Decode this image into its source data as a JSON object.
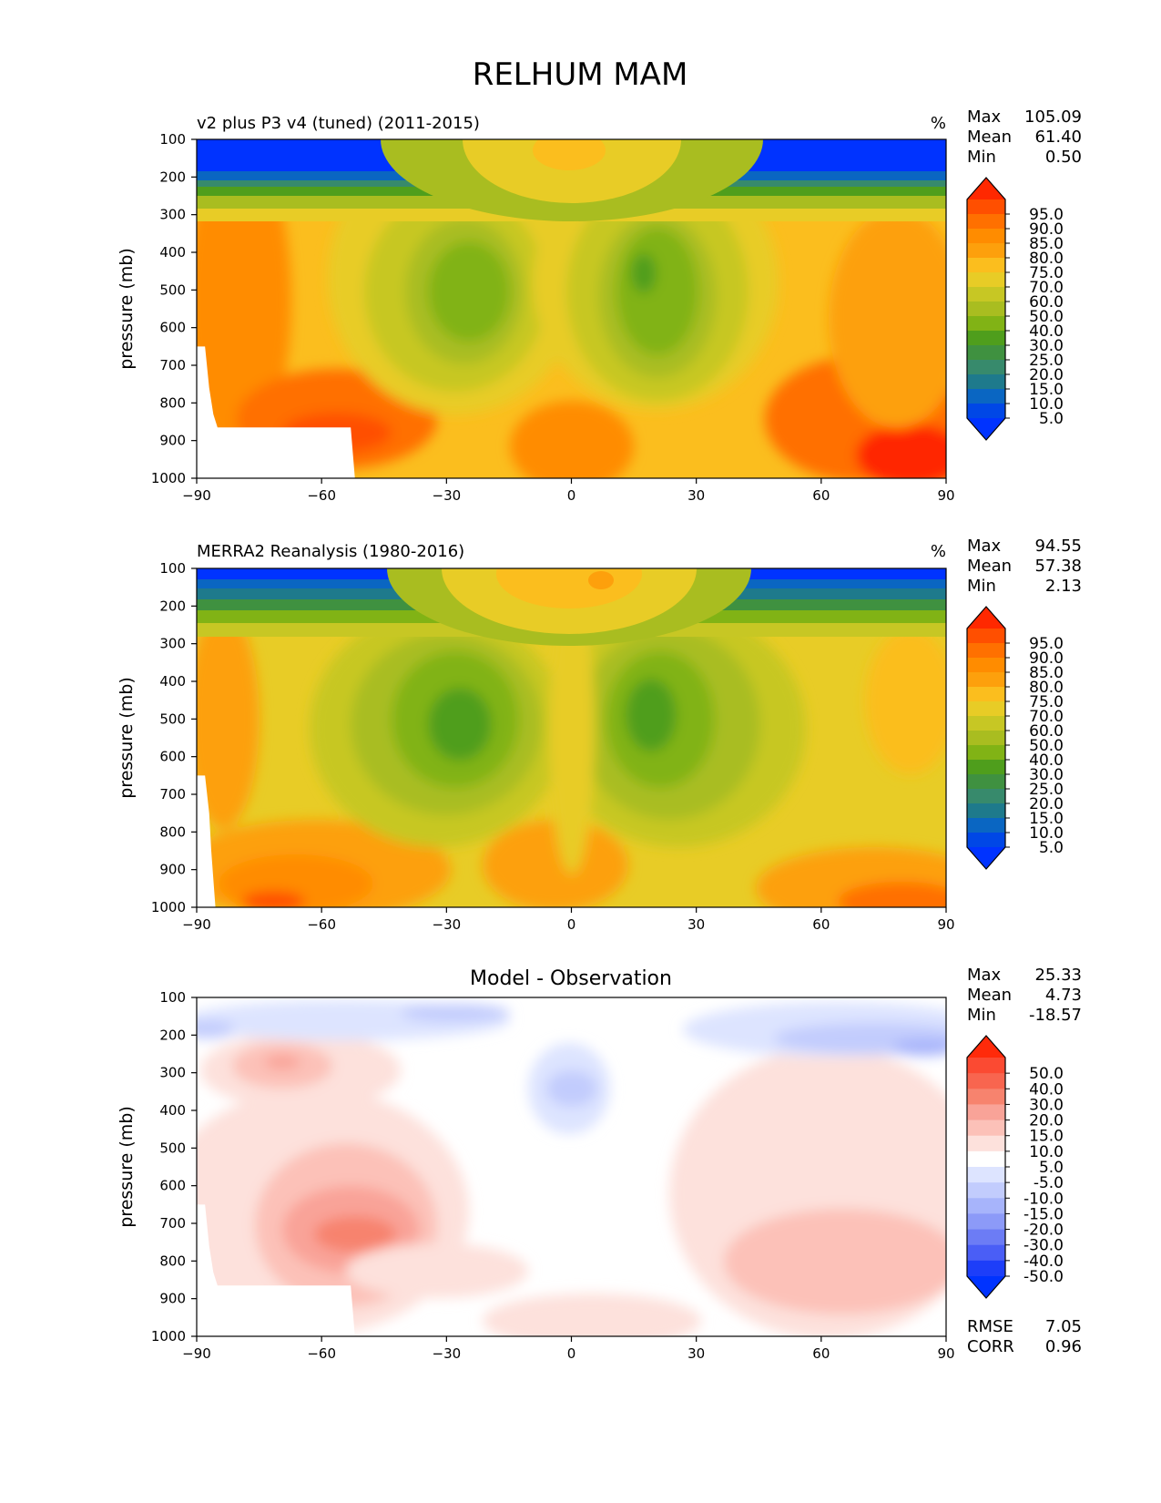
{
  "figure_title": "RELHUM MAM",
  "chart_data": [
    {
      "type": "heatmap",
      "title": "v2 plus P3 v4 (tuned) (2011-2015)",
      "units": "%",
      "xlabel": "",
      "ylabel": "pressure (mb)",
      "xlim": [
        -90,
        90
      ],
      "ylim": [
        1000,
        100
      ],
      "x_ticks": [
        "−90",
        "−60",
        "−30",
        "0",
        "30",
        "60",
        "90"
      ],
      "x_tick_values": [
        -90,
        -60,
        -30,
        0,
        30,
        60,
        90
      ],
      "y_ticks": [
        "100",
        "200",
        "300",
        "400",
        "500",
        "600",
        "700",
        "800",
        "900",
        "1000"
      ],
      "y_tick_values": [
        100,
        200,
        300,
        400,
        500,
        600,
        700,
        800,
        900,
        1000
      ],
      "stats": [
        {
          "label": "Max",
          "value": "105.09"
        },
        {
          "label": "Mean",
          "value": "61.40"
        },
        {
          "label": "Min",
          "value": "0.50"
        }
      ],
      "colorbar_levels": [
        "95.0",
        "90.0",
        "85.0",
        "80.0",
        "75.0",
        "70.0",
        "60.0",
        "50.0",
        "40.0",
        "30.0",
        "25.0",
        "20.0",
        "15.0",
        "10.0",
        "5.0"
      ],
      "colorbar_colors": [
        "#ff2800",
        "#ff4f00",
        "#ff7000",
        "#ff8c00",
        "#fda00c",
        "#fbbe1e",
        "#e8cc26",
        "#c7c724",
        "#a9bd20",
        "#81b315",
        "#4f9e1c",
        "#3f9140",
        "#378a6c",
        "#1e7a8c",
        "#0a66c2",
        "#0047e6",
        "#0033ff"
      ],
      "surface_edge": [
        [
          -90,
          650
        ],
        [
          -88,
          650
        ],
        [
          -87,
          760
        ],
        [
          -86,
          830
        ],
        [
          -85,
          865
        ],
        [
          -53,
          865
        ],
        [
          -52,
          1000
        ]
      ]
    },
    {
      "type": "heatmap",
      "title": "MERRA2 Reanalysis (1980-2016)",
      "units": "%",
      "xlabel": "",
      "ylabel": "pressure (mb)",
      "xlim": [
        -90,
        90
      ],
      "ylim": [
        1000,
        100
      ],
      "x_ticks": [
        "−90",
        "−60",
        "−30",
        "0",
        "30",
        "60",
        "90"
      ],
      "x_tick_values": [
        -90,
        -60,
        -30,
        0,
        30,
        60,
        90
      ],
      "y_ticks": [
        "100",
        "200",
        "300",
        "400",
        "500",
        "600",
        "700",
        "800",
        "900",
        "1000"
      ],
      "y_tick_values": [
        100,
        200,
        300,
        400,
        500,
        600,
        700,
        800,
        900,
        1000
      ],
      "stats": [
        {
          "label": "Max",
          "value": "94.55"
        },
        {
          "label": "Mean",
          "value": "57.38"
        },
        {
          "label": "Min",
          "value": "2.13"
        }
      ],
      "colorbar_levels": [
        "95.0",
        "90.0",
        "85.0",
        "80.0",
        "75.0",
        "70.0",
        "60.0",
        "50.0",
        "40.0",
        "30.0",
        "25.0",
        "20.0",
        "15.0",
        "10.0",
        "5.0"
      ],
      "colorbar_colors": [
        "#ff2800",
        "#ff4f00",
        "#ff7000",
        "#ff8c00",
        "#fda00c",
        "#fbbe1e",
        "#e8cc26",
        "#c7c724",
        "#a9bd20",
        "#81b315",
        "#4f9e1c",
        "#3f9140",
        "#378a6c",
        "#1e7a8c",
        "#0a66c2",
        "#0047e6",
        "#0033ff"
      ],
      "surface_edge": [
        [
          -90,
          650
        ],
        [
          -88,
          650
        ],
        [
          -87,
          750
        ],
        [
          -86.5,
          850
        ],
        [
          -85.5,
          1000
        ]
      ]
    },
    {
      "type": "heatmap",
      "title": "Model - Observation",
      "units": "",
      "xlabel": "",
      "ylabel": "pressure (mb)",
      "xlim": [
        -90,
        90
      ],
      "ylim": [
        1000,
        100
      ],
      "x_ticks": [
        "−90",
        "−60",
        "−30",
        "0",
        "30",
        "60",
        "90"
      ],
      "x_tick_values": [
        -90,
        -60,
        -30,
        0,
        30,
        60,
        90
      ],
      "y_ticks": [
        "100",
        "200",
        "300",
        "400",
        "500",
        "600",
        "700",
        "800",
        "900",
        "1000"
      ],
      "y_tick_values": [
        100,
        200,
        300,
        400,
        500,
        600,
        700,
        800,
        900,
        1000
      ],
      "stats": [
        {
          "label": "Max",
          "value": "25.33"
        },
        {
          "label": "Mean",
          "value": "4.73"
        },
        {
          "label": "Min",
          "value": "-18.57"
        }
      ],
      "metrics": [
        {
          "label": "RMSE",
          "value": "7.05"
        },
        {
          "label": "CORR",
          "value": "0.96"
        }
      ],
      "colorbar_levels": [
        "50.0",
        "40.0",
        "30.0",
        "20.0",
        "15.0",
        "10.0",
        "5.0",
        "-5.0",
        "-10.0",
        "-15.0",
        "-20.0",
        "-30.0",
        "-40.0",
        "-50.0"
      ],
      "colorbar_colors": [
        "#ff2a0a",
        "#fb4a32",
        "#f8654f",
        "#f7836e",
        "#f9a398",
        "#fcc1b8",
        "#fde1dc",
        "#ffffff",
        "#dde4ff",
        "#c2ccfd",
        "#a7b4fb",
        "#8c9af8",
        "#6c7cf5",
        "#4a5ef6",
        "#1d3ef9",
        "#0033ff"
      ],
      "surface_edge": [
        [
          -90,
          650
        ],
        [
          -88,
          650
        ],
        [
          -87,
          760
        ],
        [
          -86,
          830
        ],
        [
          -85,
          865
        ],
        [
          -53,
          865
        ],
        [
          -52,
          1000
        ]
      ]
    }
  ]
}
